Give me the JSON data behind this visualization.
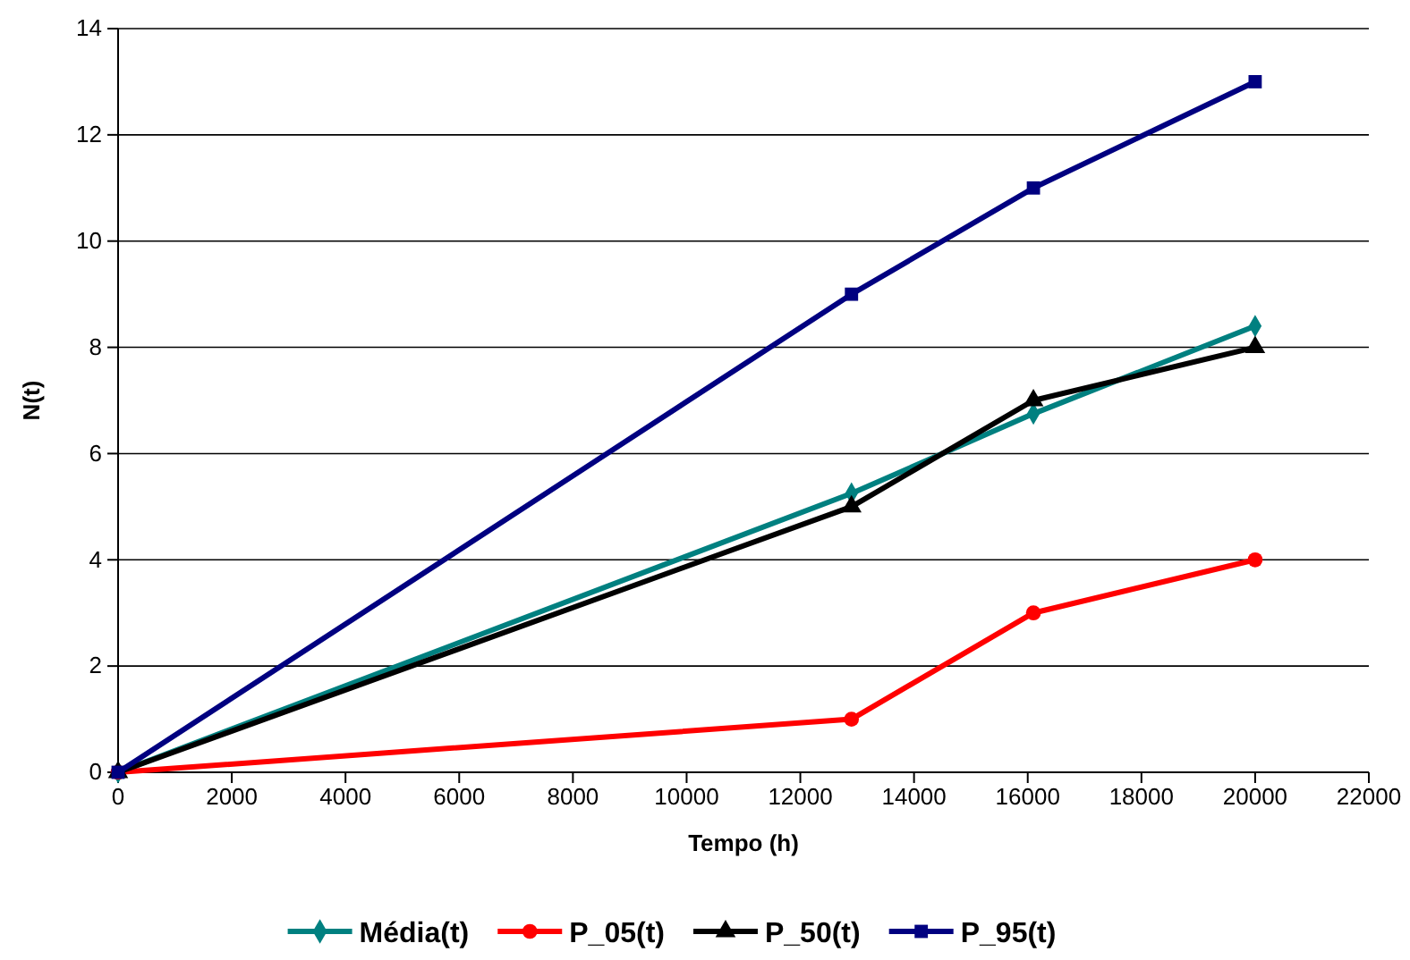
{
  "chart_data": {
    "type": "line",
    "xlabel": "Tempo (h)",
    "ylabel": "N(t)",
    "x": [
      0,
      12900,
      16100,
      20000
    ],
    "xlim": [
      0,
      22000
    ],
    "xticks": [
      0,
      2000,
      4000,
      6000,
      8000,
      10000,
      12000,
      14000,
      16000,
      18000,
      20000,
      22000
    ],
    "ylim": [
      0,
      14
    ],
    "yticks": [
      0,
      2,
      4,
      6,
      8,
      10,
      12,
      14
    ],
    "grid": "y",
    "legend": "bottom",
    "line_style": "solid",
    "series": [
      {
        "name": "Média(t)",
        "color": "#008080",
        "marker": "diamond",
        "values": [
          0,
          5.25,
          6.75,
          8.4
        ]
      },
      {
        "name": "P_05(t)",
        "color": "#ff0000",
        "marker": "circle",
        "values": [
          0,
          1,
          3,
          4
        ]
      },
      {
        "name": "P_50(t)",
        "color": "#000000",
        "marker": "triangle",
        "values": [
          0,
          5,
          7,
          8
        ]
      },
      {
        "name": "P_95(t)",
        "color": "#000080",
        "marker": "square",
        "values": [
          0,
          9,
          11,
          13
        ]
      }
    ]
  }
}
